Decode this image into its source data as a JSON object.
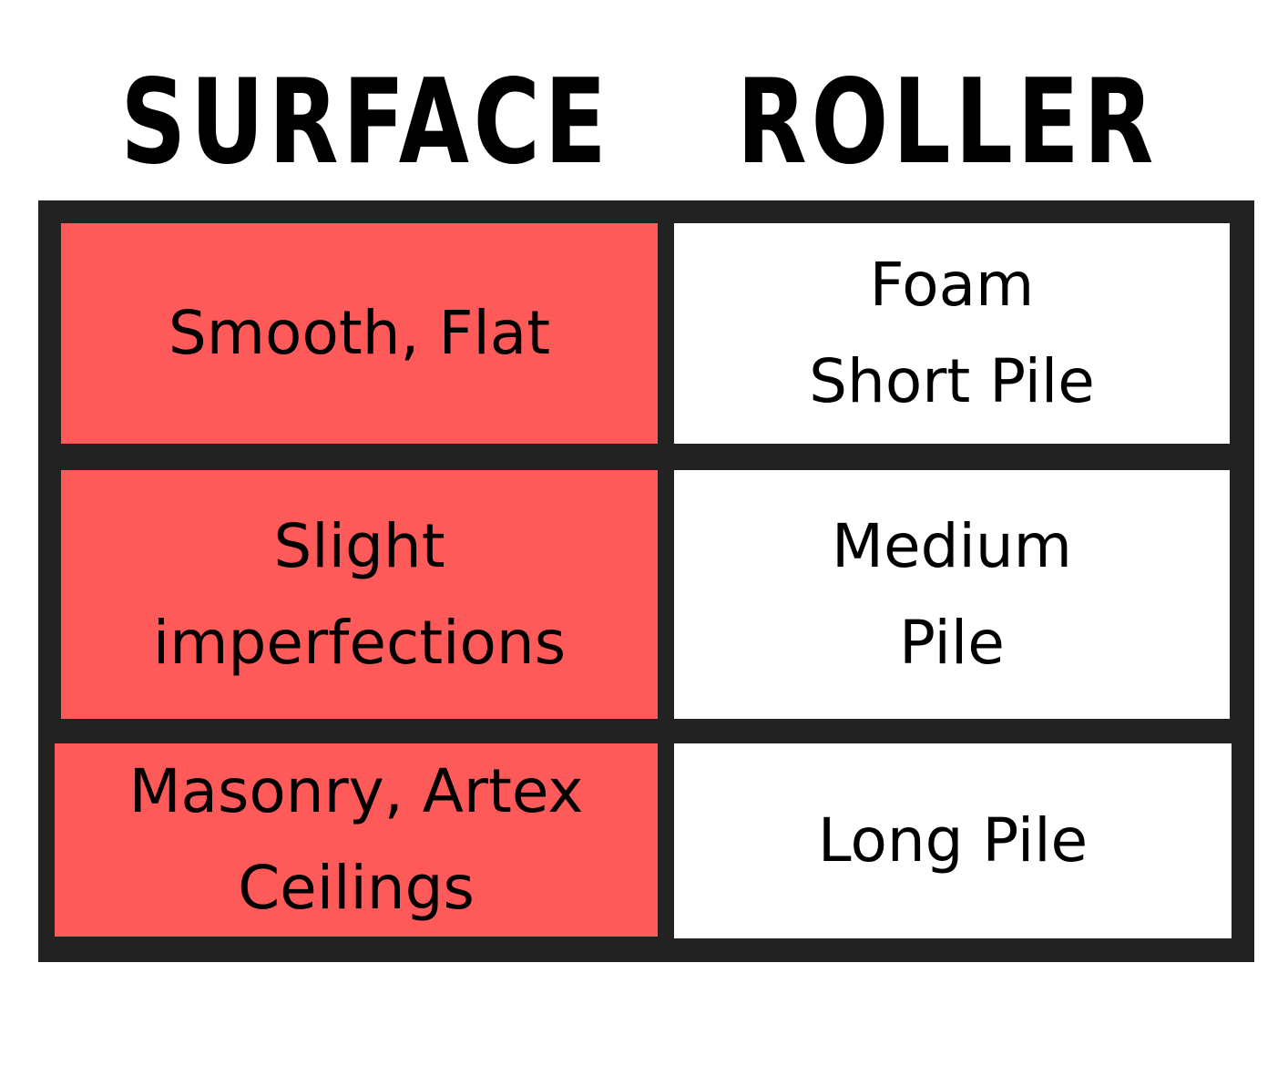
{
  "headers": {
    "surface": "Surface",
    "roller": "Roller"
  },
  "rows": [
    {
      "surface": "Smooth, Flat",
      "roller": "Foam\nShort Pile"
    },
    {
      "surface": "Slight\nimperfections",
      "roller": "Medium\nPile"
    },
    {
      "surface": "Masonry, Artex\nCeilings",
      "roller": "Long Pile"
    }
  ],
  "colors": {
    "surface_fill": "#ff5a5a",
    "roller_fill": "#ffffff",
    "border": "#222222",
    "text": "#000000"
  }
}
